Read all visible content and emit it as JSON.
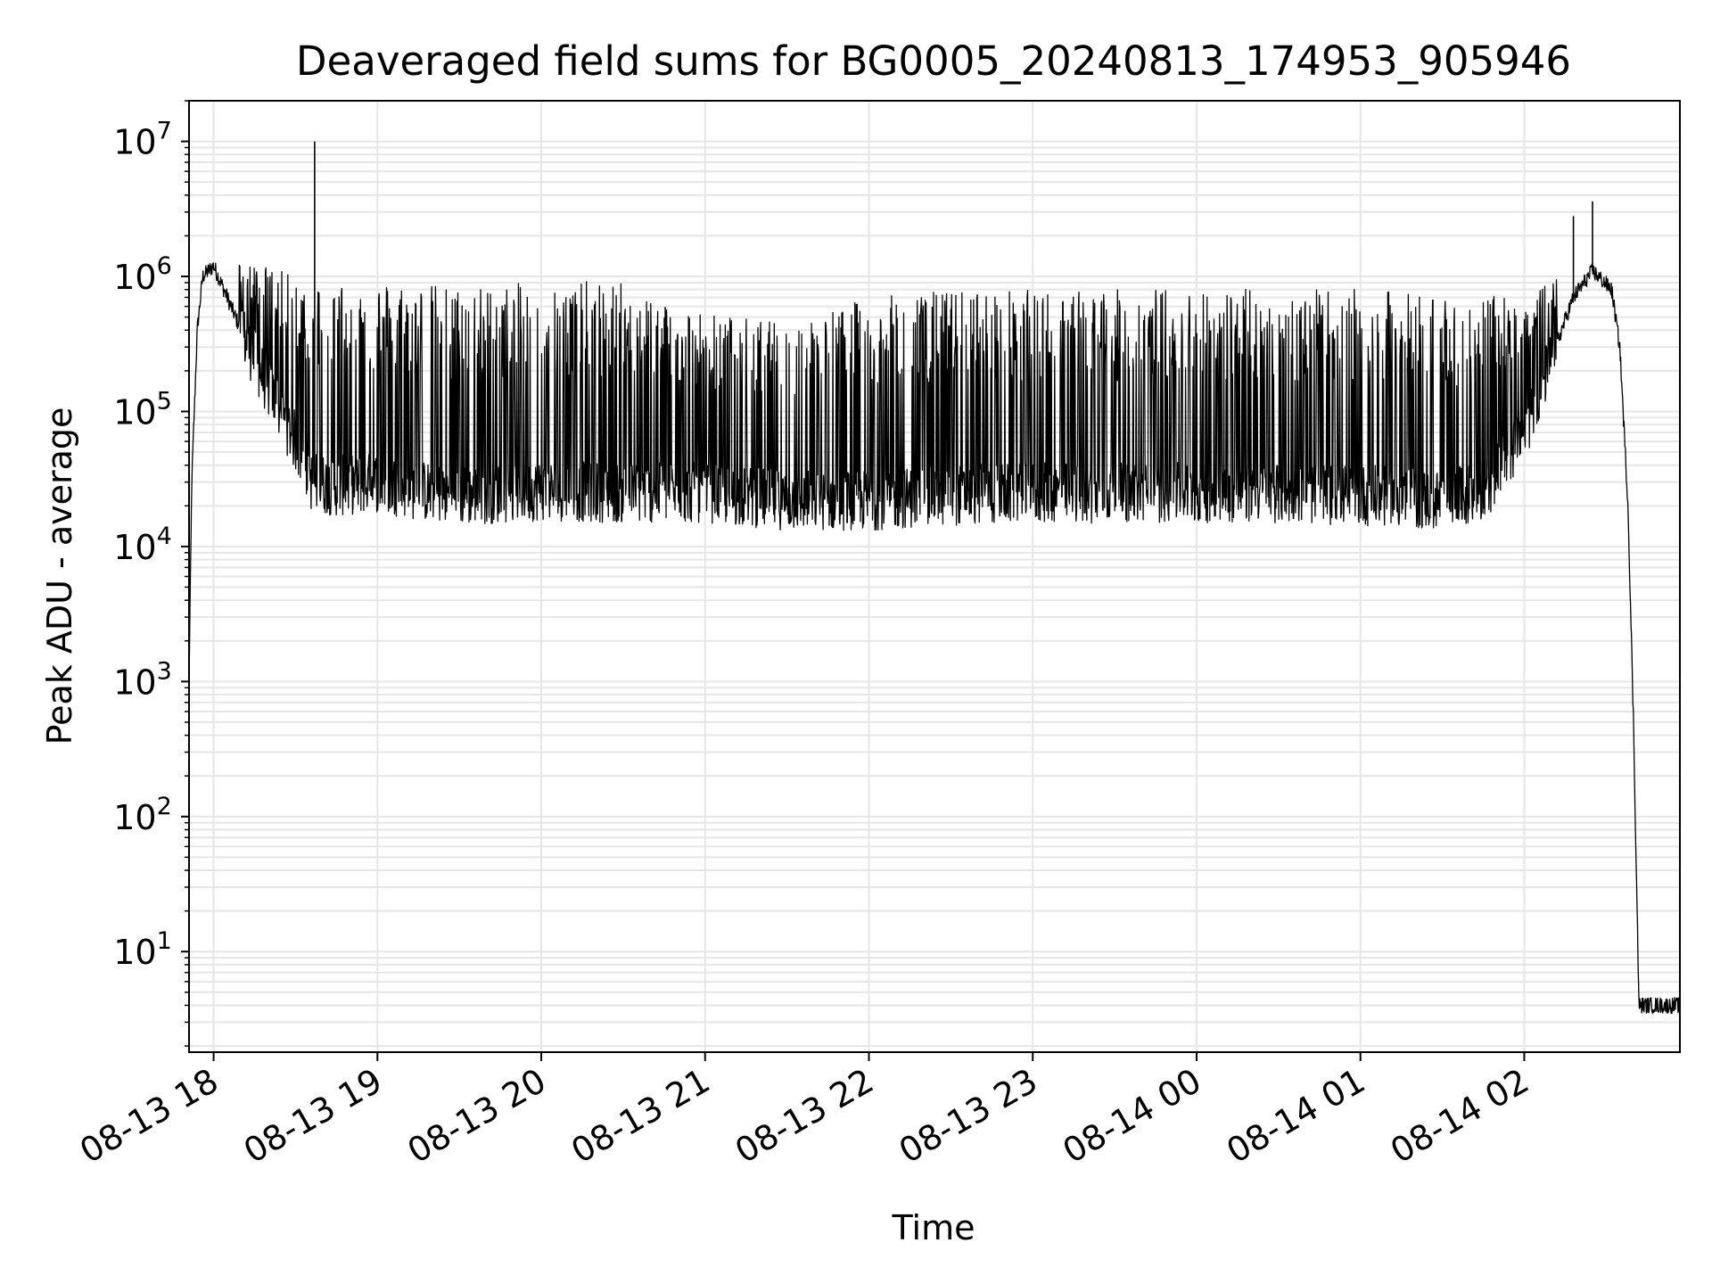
{
  "chart_data": {
    "type": "line",
    "title": "Deaveraged field sums for BG0005_20240813_174953_905946",
    "xlabel": "Time",
    "ylabel": "Peak ADU - average",
    "yscale": "log",
    "ylim": [
      1.8,
      20000000
    ],
    "xlim": [
      "2024-08-13 17:51",
      "2024-08-14 02:57"
    ],
    "grid": true,
    "line_color": "#000000",
    "grid_color": "#e6e6e6",
    "x_ticks": [
      {
        "value": "2024-08-13 18:00",
        "label": "08-13 18"
      },
      {
        "value": "2024-08-13 19:00",
        "label": "08-13 19"
      },
      {
        "value": "2024-08-13 20:00",
        "label": "08-13 20"
      },
      {
        "value": "2024-08-13 21:00",
        "label": "08-13 21"
      },
      {
        "value": "2024-08-13 22:00",
        "label": "08-13 22"
      },
      {
        "value": "2024-08-13 23:00",
        "label": "08-13 23"
      },
      {
        "value": "2024-08-14 00:00",
        "label": "08-14 00"
      },
      {
        "value": "2024-08-14 01:00",
        "label": "08-14 01"
      },
      {
        "value": "2024-08-14 02:00",
        "label": "08-14 02"
      }
    ],
    "y_ticks": [
      {
        "value": 10,
        "base": "10",
        "exp": "1"
      },
      {
        "value": 100,
        "base": "10",
        "exp": "2"
      },
      {
        "value": 1000,
        "base": "10",
        "exp": "3"
      },
      {
        "value": 10000,
        "base": "10",
        "exp": "4"
      },
      {
        "value": 100000,
        "base": "10",
        "exp": "5"
      },
      {
        "value": 1000000,
        "base": "10",
        "exp": "6"
      },
      {
        "value": 10000000,
        "base": "10",
        "exp": "7"
      }
    ],
    "series": [
      {
        "note_style": "noisy envelope: [time, baseline, upper_envelope]",
        "baseline_envelope": [
          [
            "2024-08-13 17:51",
            1000,
            1000
          ],
          [
            "2024-08-13 17:52",
            30000,
            30000
          ],
          [
            "2024-08-13 17:54",
            400000,
            400000
          ],
          [
            "2024-08-13 17:56",
            1000000,
            1200000
          ],
          [
            "2024-08-13 18:00",
            1200000,
            1400000
          ],
          [
            "2024-08-13 18:05",
            700000,
            1300000
          ],
          [
            "2024-08-13 18:10",
            400000,
            1300000
          ],
          [
            "2024-08-13 18:20",
            150000,
            1200000
          ],
          [
            "2024-08-13 18:30",
            60000,
            1000000
          ],
          [
            "2024-08-13 18:36",
            30000,
            1000000
          ],
          [
            "2024-08-13 18:45",
            28000,
            950000
          ],
          [
            "2024-08-13 19:00",
            30000,
            950000
          ],
          [
            "2024-08-13 19:15",
            26000,
            900000
          ],
          [
            "2024-08-13 19:30",
            24000,
            850000
          ],
          [
            "2024-08-13 19:45",
            25000,
            850000
          ],
          [
            "2024-08-13 20:00",
            26000,
            950000
          ],
          [
            "2024-08-13 20:30",
            25000,
            900000
          ],
          [
            "2024-08-13 21:00",
            25000,
            550000
          ],
          [
            "2024-08-13 21:30",
            22000,
            450000
          ],
          [
            "2024-08-13 22:00",
            22000,
            700000
          ],
          [
            "2024-08-13 22:30",
            24000,
            800000
          ],
          [
            "2024-08-13 23:00",
            25000,
            800000
          ],
          [
            "2024-08-13 23:30",
            25000,
            800000
          ],
          [
            "2024-08-14 00:00",
            25000,
            850000
          ],
          [
            "2024-08-14 00:30",
            25000,
            800000
          ],
          [
            "2024-08-14 01:00",
            24000,
            800000
          ],
          [
            "2024-08-14 01:30",
            22000,
            750000
          ],
          [
            "2024-08-14 01:45",
            25000,
            700000
          ],
          [
            "2024-08-14 02:00",
            70000,
            750000
          ],
          [
            "2024-08-14 02:10",
            250000,
            900000
          ],
          [
            "2024-08-14 02:18",
            700000,
            1200000
          ],
          [
            "2024-08-14 02:25",
            1100000,
            1200000
          ],
          [
            "2024-08-14 02:32",
            800000,
            900000
          ],
          [
            "2024-08-14 02:35",
            300000,
            300000
          ],
          [
            "2024-08-14 02:38",
            20000,
            20000
          ],
          [
            "2024-08-14 02:40",
            500,
            500
          ],
          [
            "2024-08-14 02:42",
            4,
            4
          ],
          [
            "2024-08-14 02:57",
            4,
            4
          ]
        ],
        "spikes": [
          [
            "2024-08-13 18:37",
            10000000
          ],
          [
            "2024-08-14 02:18",
            2800000
          ],
          [
            "2024-08-14 02:25",
            3600000
          ],
          [
            "2024-08-13 21:31",
            8000
          ]
        ]
      }
    ]
  }
}
